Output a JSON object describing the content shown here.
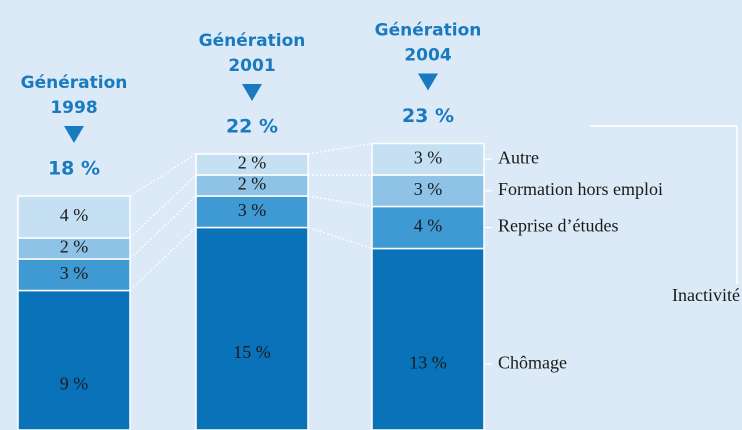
{
  "chart_data": {
    "type": "stacked-bar",
    "categories": [
      [
        "Génération",
        "1998"
      ],
      [
        "Génération",
        "2001"
      ],
      [
        "Génération",
        "2004"
      ]
    ],
    "totals": [
      18,
      22,
      23
    ],
    "total_labels": [
      "18 %",
      "22 %",
      "23 %"
    ],
    "series": [
      {
        "name": "Chômage",
        "color": "#0a72b8",
        "values": [
          9,
          15,
          13
        ],
        "value_labels": [
          "9 %",
          "15 %",
          "13 %"
        ]
      },
      {
        "name": "Reprise d’études",
        "color": "#3f99d3",
        "values": [
          3,
          3,
          4
        ],
        "value_labels": [
          "3 %",
          "3 %",
          "4 %"
        ]
      },
      {
        "name": "Formation hors emploi",
        "color": "#8ec3e7",
        "values": [
          2,
          2,
          3
        ],
        "value_labels": [
          "2 %",
          "2 %",
          "3 %"
        ]
      },
      {
        "name": "Autre",
        "color": "#c5e0f3",
        "values": [
          4,
          2,
          3
        ],
        "value_labels": [
          "4 %",
          "2 %",
          "3 %"
        ]
      }
    ],
    "group_label": "Inactivité"
  }
}
